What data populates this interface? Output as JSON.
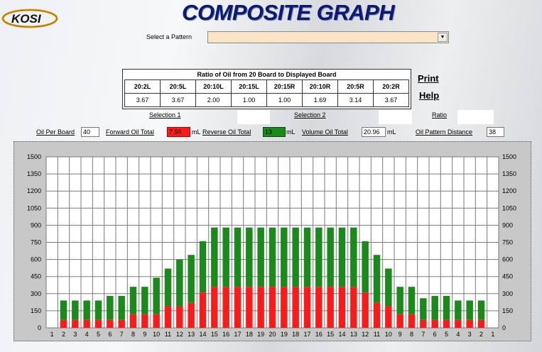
{
  "app": {
    "logo_text": "KOSI",
    "title": "COMPOSITE GRAPH"
  },
  "pattern": {
    "label": "Select a Pattern",
    "value": ""
  },
  "ratio_table": {
    "title": "Ratio of Oil from 20 Board to Displayed Board",
    "headers": [
      "20:2L",
      "20:5L",
      "20:10L",
      "20:15L",
      "20:15R",
      "20:10R",
      "20:5R",
      "20:2R"
    ],
    "values": [
      "3.67",
      "3.67",
      "2.00",
      "1.00",
      "1.00",
      "1.69",
      "3.14",
      "3.67"
    ]
  },
  "links": {
    "print": "Print",
    "help": "Help"
  },
  "selection": {
    "selection1_label": "Selection 1",
    "selection2_label": "Selection 2",
    "ratio_label": "Ratio"
  },
  "stats": {
    "oil_per_board_label": "Oil Per Board",
    "oil_per_board_value": "40",
    "forward_label": "Forward Oil Total",
    "forward_value": "7.96",
    "forward_unit": "mL",
    "reverse_label": "Reverse Oil Total",
    "reverse_value": "13",
    "reverse_unit": "mL",
    "volume_label": "Volume Oil Total",
    "volume_value": "20.96",
    "volume_unit": "mL",
    "distance_label": "Oil Pattern Distance",
    "distance_value": "38"
  },
  "colors": {
    "forward": "#ff1a1a",
    "reverse": "#1a8a1a",
    "chart_bg": "#ffffff",
    "title": "#0d1a73"
  },
  "chart_data": {
    "type": "bar",
    "stacked": true,
    "categories": [
      "1",
      "2",
      "3",
      "4",
      "5",
      "6",
      "7",
      "8",
      "9",
      "10",
      "11",
      "12",
      "13",
      "14",
      "15",
      "16",
      "17",
      "18",
      "19",
      "20",
      "19",
      "18",
      "17",
      "16",
      "15",
      "14",
      "13",
      "12",
      "11",
      "10",
      "9",
      "8",
      "7",
      "6",
      "5",
      "4",
      "3",
      "2",
      "1"
    ],
    "series": [
      {
        "name": "",
        "color": "#ff1a1a",
        "values": [
          0,
          70,
          70,
          70,
          70,
          70,
          70,
          120,
          120,
          120,
          190,
          190,
          220,
          310,
          360,
          360,
          360,
          360,
          360,
          360,
          360,
          360,
          360,
          360,
          360,
          360,
          360,
          310,
          220,
          190,
          120,
          120,
          70,
          70,
          70,
          70,
          70,
          70,
          0
        ]
      },
      {
        "name": "",
        "color": "#1a8a1a",
        "values": [
          0,
          170,
          170,
          170,
          170,
          210,
          210,
          240,
          240,
          320,
          330,
          410,
          420,
          450,
          520,
          520,
          520,
          520,
          520,
          520,
          520,
          520,
          520,
          520,
          520,
          520,
          520,
          450,
          420,
          330,
          240,
          240,
          190,
          210,
          210,
          170,
          170,
          170,
          0
        ]
      }
    ],
    "ylim": [
      0,
      1500
    ],
    "y_ticks": [
      "0",
      "150",
      "300",
      "450",
      "600",
      "750",
      "900",
      "1050",
      "1200",
      "1350",
      "1500"
    ],
    "grid": true
  }
}
